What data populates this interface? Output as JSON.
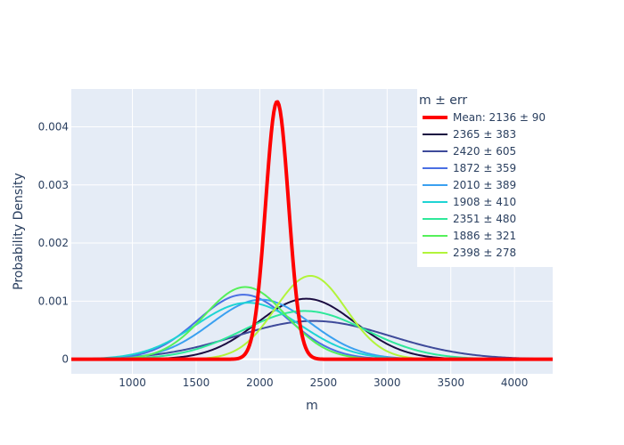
{
  "chart_data": {
    "type": "line",
    "xlabel": "m",
    "ylabel": "Probability Density",
    "xlim": [
      520,
      4300
    ],
    "ylim": [
      -0.00025,
      0.00465
    ],
    "x_ticks": [
      1000,
      1500,
      2000,
      2500,
      3000,
      3500,
      4000
    ],
    "x_tick_labels": [
      "1000",
      "1500",
      "2000",
      "2500",
      "3000",
      "3500",
      "4000"
    ],
    "y_ticks": [
      0,
      0.001,
      0.002,
      0.003,
      0.004
    ],
    "y_tick_labels": [
      "0",
      "0.001",
      "0.002",
      "0.003",
      "0.004"
    ],
    "grid": true,
    "legend": {
      "title": "m ± err",
      "placement": "top-right"
    },
    "background_color": "#e5ecf6",
    "x_sampling": {
      "start": 520,
      "end": 4300,
      "step": 10
    },
    "series": [
      {
        "name": "Mean: 2136 ± 90",
        "mean": 2136,
        "sd": 90,
        "color": "#ff0000",
        "line_width": 4
      },
      {
        "name": "2365 ± 383",
        "mean": 2365,
        "sd": 383,
        "color": "#1b0c41",
        "line_width": 2
      },
      {
        "name": "2420 ± 605",
        "mean": 2420,
        "sd": 605,
        "color": "#3e4a9a",
        "line_width": 2
      },
      {
        "name": "1872 ± 359",
        "mean": 1872,
        "sd": 359,
        "color": "#4a6fe3",
        "line_width": 2
      },
      {
        "name": "2010 ± 389",
        "mean": 2010,
        "sd": 389,
        "color": "#3aa0f0",
        "line_width": 2
      },
      {
        "name": "1908 ± 410",
        "mean": 1908,
        "sd": 410,
        "color": "#1ed4d4",
        "line_width": 2
      },
      {
        "name": "2351 ± 480",
        "mean": 2351,
        "sd": 480,
        "color": "#2ee89a",
        "line_width": 2
      },
      {
        "name": "1886 ± 321",
        "mean": 1886,
        "sd": 321,
        "color": "#55f05a",
        "line_width": 2
      },
      {
        "name": "2398 ± 278",
        "mean": 2398,
        "sd": 278,
        "color": "#b2f43a",
        "line_width": 2
      }
    ]
  }
}
